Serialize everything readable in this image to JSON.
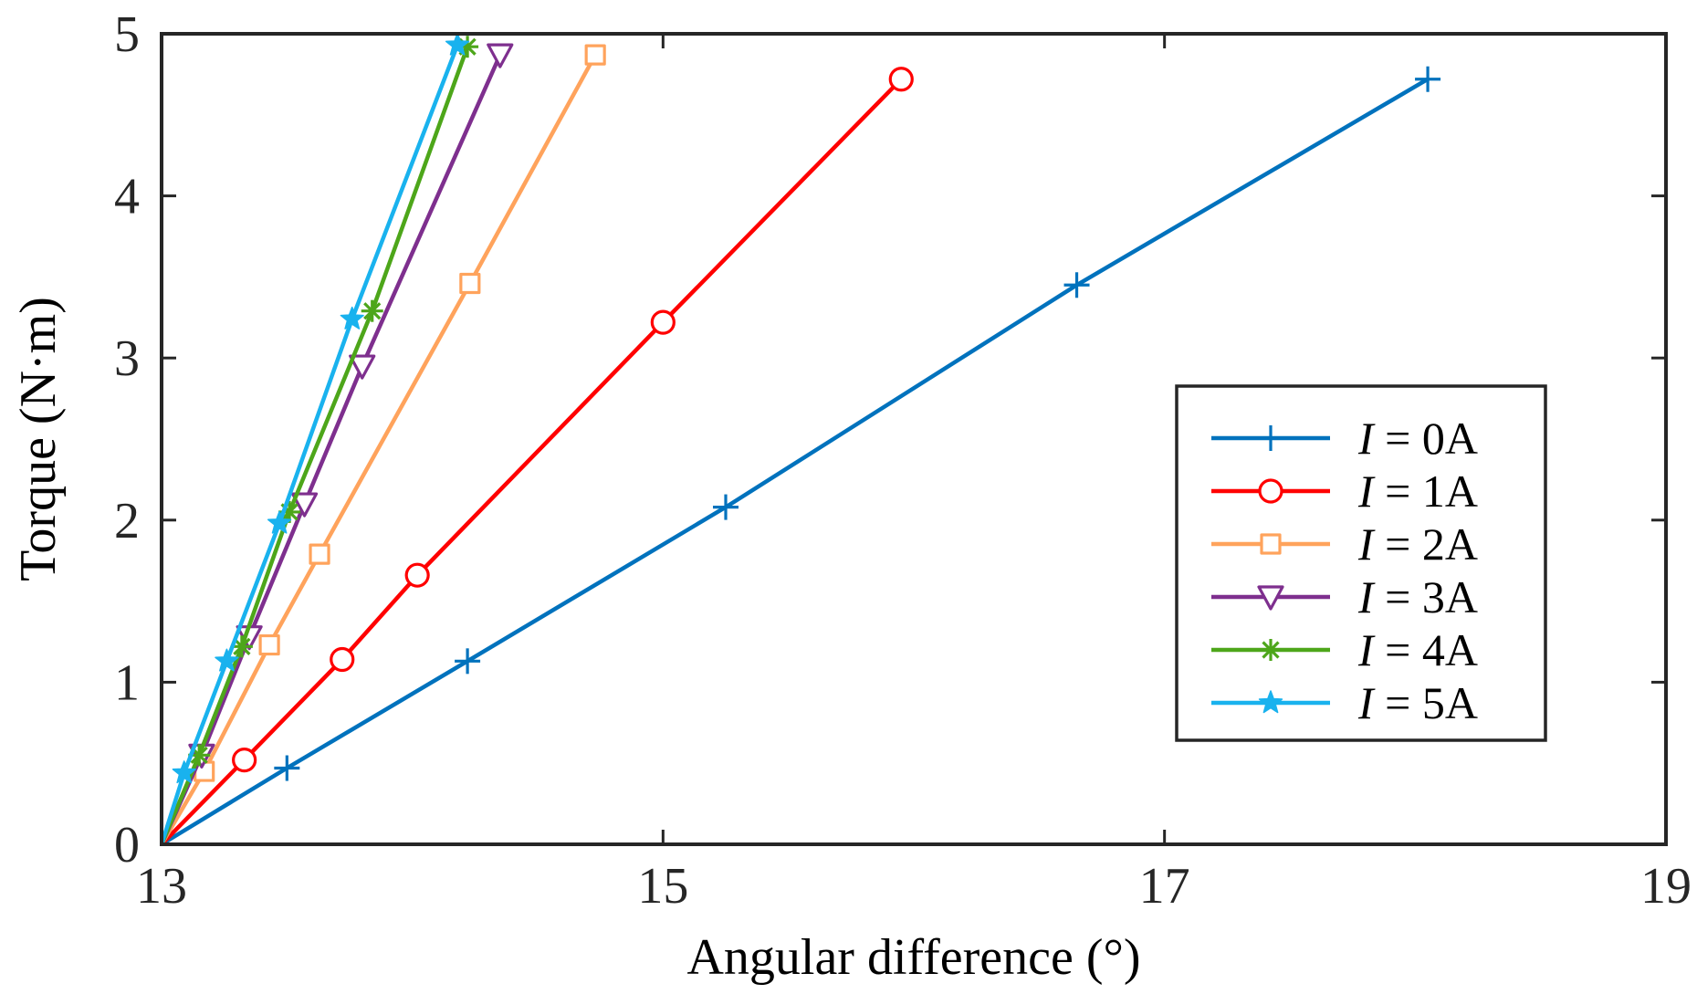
{
  "chart_data": {
    "type": "line",
    "title": "",
    "xlabel": "Angular difference (°)",
    "ylabel": "Torque (N·m)",
    "xlim": [
      13,
      19
    ],
    "ylim": [
      0,
      5
    ],
    "xticks": [
      13,
      15,
      17,
      19
    ],
    "yticks": [
      0,
      1,
      2,
      3,
      4,
      5
    ],
    "grid": false,
    "legend_position": "center-right",
    "series": [
      {
        "name": "I = 0A",
        "prefix": "I",
        "suffix": " = 0A",
        "color": "#0072BD",
        "marker": "plus",
        "x": [
          13.0,
          13.5,
          14.22,
          15.25,
          16.65,
          18.05
        ],
        "y": [
          0.0,
          0.47,
          1.13,
          2.08,
          3.45,
          4.72
        ]
      },
      {
        "name": "I = 1A",
        "prefix": "I",
        "suffix": " = 1A",
        "color": "#FF0000",
        "marker": "circle",
        "x": [
          13.0,
          13.33,
          13.72,
          14.02,
          15.0,
          15.95
        ],
        "y": [
          0.0,
          0.52,
          1.14,
          1.66,
          3.22,
          4.72
        ]
      },
      {
        "name": "I = 2A",
        "prefix": "I",
        "suffix": " = 2A",
        "color": "#FFA35C",
        "marker": "square",
        "x": [
          13.0,
          13.17,
          13.43,
          13.63,
          14.23,
          14.73
        ],
        "y": [
          0.0,
          0.45,
          1.23,
          1.79,
          3.46,
          4.87
        ]
      },
      {
        "name": "I = 3A",
        "prefix": "I",
        "suffix": " = 3A",
        "color": "#7E2F8E",
        "marker": "triangle-down",
        "x": [
          13.0,
          13.16,
          13.35,
          13.57,
          13.8,
          14.35
        ],
        "y": [
          0.0,
          0.55,
          1.28,
          2.1,
          2.95,
          4.87
        ]
      },
      {
        "name": "I = 4A",
        "prefix": "I",
        "suffix": " = 4A",
        "color": "#4DA61A",
        "marker": "asterisk",
        "x": [
          13.0,
          13.15,
          13.32,
          13.51,
          13.84,
          14.22
        ],
        "y": [
          0.0,
          0.55,
          1.22,
          2.05,
          3.29,
          4.92
        ]
      },
      {
        "name": "I = 5A",
        "prefix": "I",
        "suffix": " = 5A",
        "color": "#19B2EE",
        "marker": "star",
        "x": [
          13.0,
          13.09,
          13.26,
          13.47,
          13.76,
          14.18
        ],
        "y": [
          0.0,
          0.44,
          1.13,
          1.98,
          3.24,
          4.93
        ]
      }
    ]
  }
}
